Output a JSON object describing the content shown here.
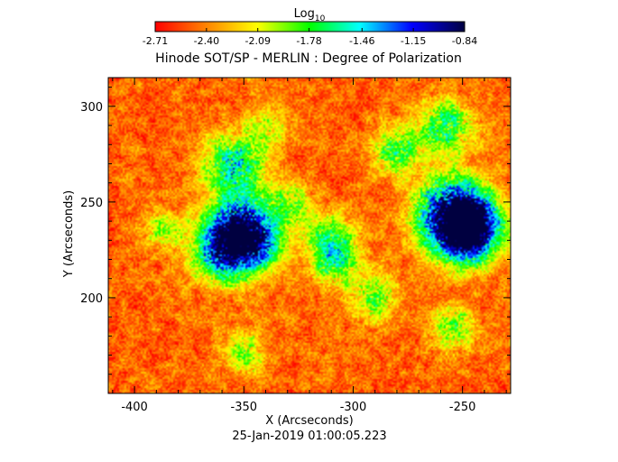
{
  "chart_data": {
    "type": "heatmap",
    "title": "Hinode SOT/SP - MERLIN : Degree of Polarization",
    "xlabel": "X (Arcseconds)",
    "ylabel": "Y (Arcseconds)",
    "footer": "25-Jan-2019 01:00:05.223",
    "xlim": [
      -412,
      -228
    ],
    "ylim": [
      150,
      315
    ],
    "x_ticks": [
      -400,
      -350,
      -300,
      -250
    ],
    "x_tick_labels": [
      "-400",
      "-350",
      "-300",
      "-250"
    ],
    "y_ticks": [
      200,
      250,
      300
    ],
    "y_tick_labels": [
      "200",
      "250",
      "300"
    ],
    "colorbar": {
      "label_base": "Log",
      "label_sub": "10",
      "scale": "log10",
      "range": [
        -2.71,
        -0.84
      ],
      "tick_values": [
        -2.71,
        -2.4,
        -2.09,
        -1.78,
        -1.46,
        -1.15,
        -0.84
      ],
      "tick_labels": [
        "-2.71",
        "-2.40",
        "-2.09",
        "-1.78",
        "-1.46",
        "-1.15",
        "-0.84"
      ],
      "colormap": [
        "#ff0000",
        "#ff8000",
        "#ffff00",
        "#00ff00",
        "#00ffff",
        "#0000ff",
        "#000040"
      ]
    },
    "grid": false,
    "polarization_patches": [
      {
        "x": -256,
        "y": 245,
        "strength": 1.0
      },
      {
        "x": -250,
        "y": 232,
        "strength": 0.8
      },
      {
        "x": -245,
        "y": 240,
        "strength": 0.7
      },
      {
        "x": -352,
        "y": 238,
        "strength": 0.9
      },
      {
        "x": -360,
        "y": 225,
        "strength": 0.8
      },
      {
        "x": -345,
        "y": 228,
        "strength": 0.6
      },
      {
        "x": -355,
        "y": 270,
        "strength": 0.7
      },
      {
        "x": -258,
        "y": 290,
        "strength": 0.6
      },
      {
        "x": -280,
        "y": 278,
        "strength": 0.5
      },
      {
        "x": -312,
        "y": 232,
        "strength": 0.5
      },
      {
        "x": -308,
        "y": 218,
        "strength": 0.5
      },
      {
        "x": -290,
        "y": 200,
        "strength": 0.45
      },
      {
        "x": -255,
        "y": 185,
        "strength": 0.45
      },
      {
        "x": -350,
        "y": 172,
        "strength": 0.4
      },
      {
        "x": -388,
        "y": 236,
        "strength": 0.35
      },
      {
        "x": -330,
        "y": 250,
        "strength": 0.4
      },
      {
        "x": -340,
        "y": 290,
        "strength": 0.35
      }
    ]
  }
}
